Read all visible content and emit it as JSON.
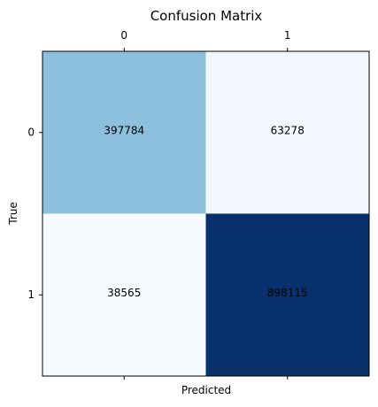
{
  "chart_data": {
    "type": "heatmap",
    "title": "Confusion Matrix",
    "xlabel": "Predicted",
    "ylabel": "True",
    "x_categories": [
      "0",
      "1"
    ],
    "y_categories": [
      "0",
      "1"
    ],
    "values": [
      [
        397784,
        63278
      ],
      [
        38565,
        898115
      ]
    ],
    "x_tick_position": "top",
    "grid": false,
    "colormap": "Blues",
    "colors": {
      "low": "#f7fbff",
      "high": "#08306b",
      "text": "#000000"
    }
  }
}
